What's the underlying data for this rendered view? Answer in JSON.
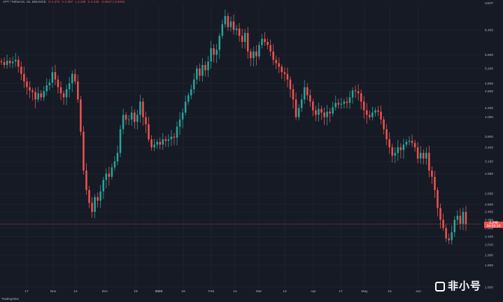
{
  "header": {
    "symbol": "APT / TetherUS, 1D, BINANCE",
    "ohlc": [
      "O 2.370",
      "H 2.387",
      "L 2.198",
      "C 2.248",
      "-0.0917 (-3.84%)"
    ]
  },
  "brand": "TradingView",
  "watermark": "非小号",
  "colors": {
    "up": "#26a69a",
    "down": "#ef5350",
    "background": "#161a25",
    "text": "#b2b5be",
    "grid": "#1e222d"
  },
  "chart_data": {
    "type": "candlestick",
    "title": "APT / TetherUS, 1D, BINANCE",
    "currency": "USDT",
    "y_scale": "log",
    "ylim": [
      1.58,
      7.3
    ],
    "grid": true,
    "y_ticks": [
      "6.400",
      "5.600",
      "5.200",
      "4.800",
      "4.600",
      "4.200",
      "4.000",
      "3.600",
      "3.400",
      "3.150",
      "2.950",
      "2.650",
      "2.500",
      "2.400",
      "2.300",
      "2.200",
      "2.100",
      "2.010",
      "1.900",
      "1.800",
      "1.600"
    ],
    "x_ticks": [
      "17",
      "Nov",
      "14",
      "Dec",
      "19",
      "2023",
      "16",
      "Feb",
      "14",
      "Mar",
      "13",
      "Apr",
      "17",
      "May",
      "15",
      "Jun"
    ],
    "last_price": "2.248",
    "countdown": "04:53:24",
    "close_values": [
      5.38,
      5.3,
      5.42,
      5.35,
      5.4,
      5.45,
      5.25,
      5.05,
      4.85,
      4.7,
      4.62,
      4.58,
      4.4,
      4.55,
      4.45,
      4.6,
      4.75,
      4.82,
      5.1,
      4.9,
      4.7,
      4.55,
      4.45,
      4.65,
      4.8,
      5.05,
      4.85,
      4.4,
      3.7,
      3.0,
      2.7,
      2.52,
      2.4,
      2.6,
      2.55,
      2.68,
      2.85,
      2.95,
      2.9,
      3.05,
      3.15,
      3.3,
      3.75,
      4.05,
      3.95,
      3.95,
      4.1,
      3.9,
      4.05,
      4.35,
      4.0,
      3.85,
      3.55,
      3.4,
      3.45,
      3.5,
      3.45,
      3.55,
      3.52,
      3.55,
      3.6,
      3.58,
      3.8,
      3.95,
      4.1,
      4.35,
      4.5,
      4.65,
      4.9,
      5.2,
      5.0,
      5.3,
      5.15,
      5.4,
      5.8,
      5.6,
      5.75,
      6.2,
      6.6,
      6.9,
      6.5,
      6.7,
      6.4,
      6.45,
      6.2,
      6.0,
      6.3,
      5.7,
      5.5,
      5.7,
      5.55,
      5.9,
      6.1,
      6.0,
      5.9,
      5.7,
      5.45,
      5.35,
      5.25,
      5.1,
      5.05,
      4.9,
      4.65,
      4.4,
      4.0,
      4.2,
      4.4,
      4.7,
      4.5,
      4.35,
      4.15,
      4.05,
      4.18,
      4.1,
      4.0,
      4.12,
      4.08,
      4.22,
      4.32,
      4.28,
      4.3,
      4.35,
      4.32,
      4.45,
      4.62,
      4.6,
      4.55,
      4.35,
      4.15,
      4.05,
      4.0,
      4.1,
      4.15,
      4.12,
      3.95,
      3.75,
      3.55,
      3.4,
      3.25,
      3.3,
      3.4,
      3.35,
      3.45,
      3.5,
      3.52,
      3.48,
      3.4,
      3.2,
      3.3,
      3.2,
      3.3,
      3.0,
      2.9,
      2.7,
      2.45,
      2.3,
      2.2,
      2.08,
      2.06,
      2.15,
      2.3,
      2.35,
      2.25,
      2.4,
      2.248
    ]
  }
}
